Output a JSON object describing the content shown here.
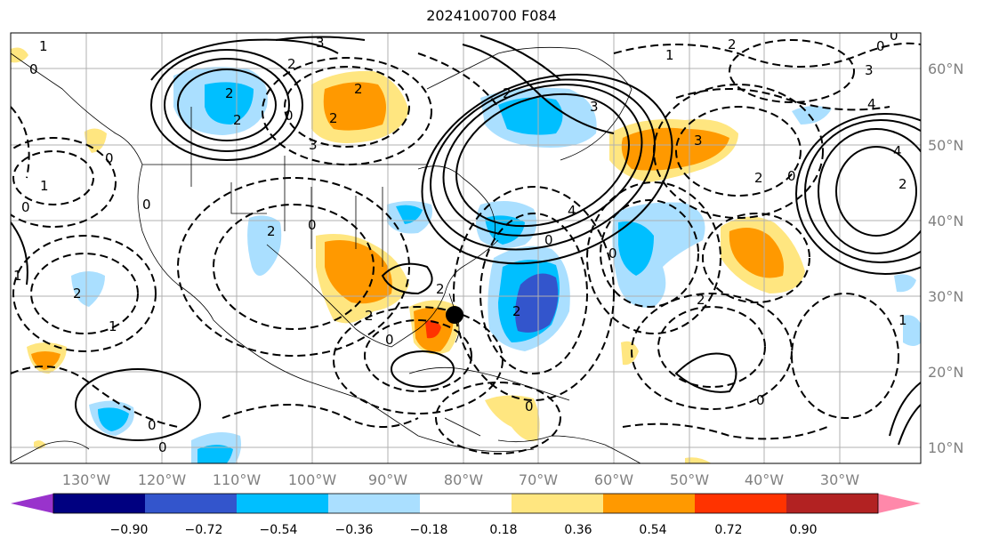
{
  "title": "2024100700 F084",
  "longitude_labels": [
    "130°W",
    "120°W",
    "110°W",
    "100°W",
    "90°W",
    "80°W",
    "70°W",
    "60°W",
    "50°W",
    "40°W",
    "30°W"
  ],
  "latitude_labels": [
    "60°N",
    "50°N",
    "40°N",
    "30°N",
    "20°N",
    "10°N"
  ],
  "colorbar": {
    "tick_labels": [
      "−0.90",
      "−0.72",
      "−0.54",
      "−0.36",
      "−0.18",
      "0.18",
      "0.36",
      "0.54",
      "0.72",
      "0.90"
    ],
    "colors": [
      "#9933cc",
      "#000080",
      "#3355cc",
      "#00bfff",
      "#aadfff",
      "#ffffff",
      "#ffe680",
      "#ff9900",
      "#ff3300",
      "#b22222",
      "#ff88aa"
    ]
  },
  "contour_labels": [
    "1",
    "0",
    "2",
    "3",
    "2",
    "2",
    "0",
    "3",
    "2",
    "2",
    "2",
    "0",
    "1",
    "0",
    "0",
    "2",
    "1",
    "1",
    "2",
    "0",
    "4",
    "3",
    "3",
    "0",
    "2",
    "4",
    "2",
    "0",
    "1",
    "2",
    "0",
    "0",
    "4",
    "3",
    "2",
    "2",
    "0",
    "0",
    "0",
    "2",
    "2",
    "0",
    "1",
    "0",
    "0"
  ],
  "storm_marker": "filled circle (storm center)"
}
